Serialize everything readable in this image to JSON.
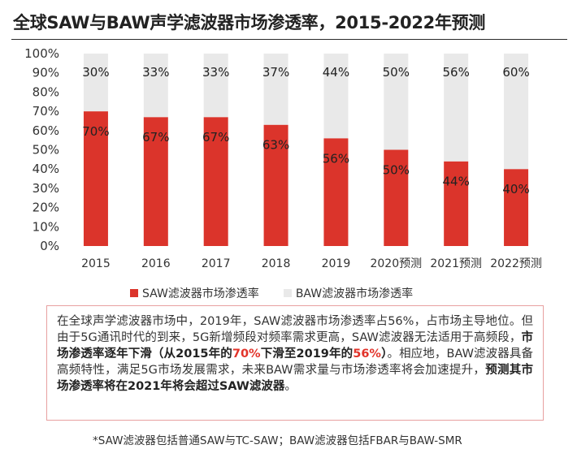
{
  "title": "全球SAW与BAW声学滤波器市场渗透率，2015-2022年预测",
  "colors": {
    "saw": "#db342b",
    "baw": "#e9e9e9",
    "highlight": "#e2332a",
    "box_border": "#e8a0a0"
  },
  "chart_data": {
    "type": "bar",
    "stacked": true,
    "categories": [
      "2015",
      "2016",
      "2017",
      "2018",
      "2019",
      "2020预测",
      "2021预测",
      "2022预测"
    ],
    "series": [
      {
        "name": "SAW滤波器市场渗透率",
        "values": [
          70,
          67,
          67,
          63,
          56,
          50,
          44,
          40
        ],
        "labels": [
          "70%",
          "67%",
          "67%",
          "63%",
          "56%",
          "50%",
          "44%",
          "40%"
        ]
      },
      {
        "name": "BAW滤波器市场渗透率",
        "values": [
          30,
          33,
          33,
          37,
          44,
          50,
          56,
          60
        ],
        "labels": [
          "30%",
          "33%",
          "33%",
          "37%",
          "44%",
          "50%",
          "56%",
          "60%"
        ]
      }
    ],
    "yticks": [
      "0%",
      "10%",
      "20%",
      "30%",
      "40%",
      "50%",
      "60%",
      "70%",
      "80%",
      "90%",
      "100%"
    ],
    "ylim": [
      0,
      100
    ],
    "grid": false,
    "legend_position": "bottom"
  },
  "note": {
    "p1": "在全球声学滤波器市场中，2019年，SAW滤波器市场渗透率占56%，占市场主导地位。但由于5G通讯时代的到来，5G新增频段对频率需求更高，SAW滤波器无法适用于高频段，",
    "b1": "市场渗透率逐年下滑（从2015年的",
    "h1": "70%",
    "b2": "下滑至2019年的",
    "h2": "56%",
    "b3": "）",
    "p2": "。相应地，BAW滤波器具备高频特性，满足5G市场发展需求，未来BAW需求量与市场渗透率将会加速提升，",
    "b4": "预测其市场渗透率将在2021年将会超过SAW滤波器",
    "p3": "。"
  },
  "footnote": "*SAW滤波器包括普通SAW与TC-SAW；BAW滤波器包括FBAR与BAW-SMR"
}
